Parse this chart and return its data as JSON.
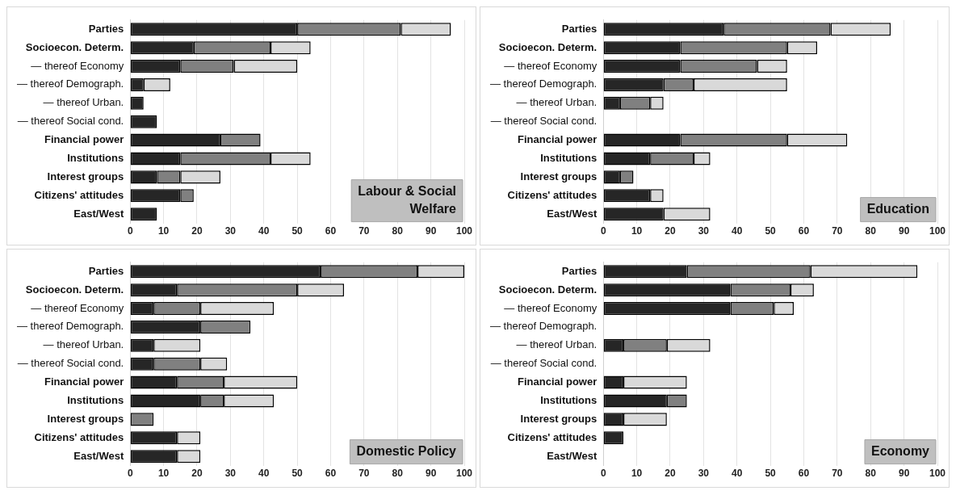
{
  "chart_data": [
    {
      "type": "bar",
      "orientation": "horizontal",
      "stacked": true,
      "title": "Labour & Social Welfare",
      "categories": [
        "Parties",
        "Socioecon. Determ.",
        "— thereof Economy",
        "— thereof Demograph.",
        "— thereof Urban.",
        "— thereof Social cond.",
        "Financial power",
        "Institutions",
        "Interest groups",
        "Citizens' attitudes",
        "East/West"
      ],
      "series": [
        {
          "color": "#262626",
          "values": [
            50,
            19,
            15,
            4,
            4,
            8,
            27,
            15,
            8,
            15,
            8
          ]
        },
        {
          "color": "#808080",
          "values": [
            31,
            23,
            16,
            null,
            null,
            null,
            12,
            27,
            7,
            4,
            null
          ]
        },
        {
          "color": "#d9d9d9",
          "values": [
            15,
            12,
            19,
            8,
            null,
            null,
            null,
            12,
            12,
            null,
            null
          ]
        }
      ],
      "xlim": [
        0,
        100
      ],
      "xticks": [
        0,
        10,
        20,
        30,
        40,
        50,
        60,
        70,
        80,
        90,
        100
      ],
      "grid": "x",
      "legend": false
    },
    {
      "type": "bar",
      "orientation": "horizontal",
      "stacked": true,
      "title": "Education",
      "categories": [
        "Parties",
        "Socioecon. Determ.",
        "— thereof Economy",
        "— thereof Demograph.",
        "— thereof Urban.",
        "— thereof Social cond.",
        "Financial power",
        "Institutions",
        "Interest groups",
        "Citizens' attitudes",
        "East/West"
      ],
      "series": [
        {
          "color": "#262626",
          "values": [
            36,
            23,
            23,
            18,
            5,
            null,
            23,
            14,
            5,
            14,
            18
          ]
        },
        {
          "color": "#808080",
          "values": [
            32,
            32,
            23,
            9,
            9,
            null,
            32,
            13,
            4,
            null,
            null
          ]
        },
        {
          "color": "#d9d9d9",
          "values": [
            18,
            9,
            9,
            28,
            4,
            null,
            18,
            5,
            null,
            4,
            14
          ]
        }
      ],
      "xlim": [
        0,
        100
      ],
      "xticks": [
        0,
        10,
        20,
        30,
        40,
        50,
        60,
        70,
        80,
        90,
        100
      ],
      "grid": "x",
      "legend": false
    },
    {
      "type": "bar",
      "orientation": "horizontal",
      "stacked": true,
      "title": "Domestic Policy",
      "categories": [
        "Parties",
        "Socioecon. Determ.",
        "— thereof Economy",
        "— thereof Demograph.",
        "— thereof Urban.",
        "— thereof Social cond.",
        "Financial power",
        "Institutions",
        "Interest groups",
        "Citizens' attitudes",
        "East/West"
      ],
      "series": [
        {
          "color": "#262626",
          "values": [
            57,
            14,
            7,
            21,
            7,
            7,
            14,
            21,
            null,
            14,
            14
          ]
        },
        {
          "color": "#808080",
          "values": [
            29,
            36,
            14,
            15,
            null,
            14,
            14,
            7,
            7,
            null,
            null
          ]
        },
        {
          "color": "#d9d9d9",
          "values": [
            14,
            14,
            22,
            null,
            14,
            8,
            22,
            15,
            null,
            7,
            7
          ]
        }
      ],
      "xlim": [
        0,
        100
      ],
      "xticks": [
        0,
        10,
        20,
        30,
        40,
        50,
        60,
        70,
        80,
        90,
        100
      ],
      "grid": "x",
      "legend": false
    },
    {
      "type": "bar",
      "orientation": "horizontal",
      "stacked": true,
      "title": "Economy",
      "categories": [
        "Parties",
        "Socioecon. Determ.",
        "— thereof Economy",
        "— thereof Demograph.",
        "— thereof Urban.",
        "— thereof Social cond.",
        "Financial power",
        "Institutions",
        "Interest groups",
        "Citizens' attitudes",
        "East/West"
      ],
      "series": [
        {
          "color": "#262626",
          "values": [
            25,
            38,
            38,
            null,
            6,
            null,
            6,
            19,
            6,
            6,
            null
          ]
        },
        {
          "color": "#808080",
          "values": [
            37,
            18,
            13,
            null,
            13,
            null,
            null,
            6,
            null,
            null,
            null
          ]
        },
        {
          "color": "#d9d9d9",
          "values": [
            32,
            7,
            6,
            null,
            13,
            null,
            19,
            null,
            13,
            null,
            null
          ]
        }
      ],
      "xlim": [
        0,
        100
      ],
      "xticks": [
        0,
        10,
        20,
        30,
        40,
        50,
        60,
        70,
        80,
        90,
        100
      ],
      "grid": "x",
      "legend": false
    }
  ]
}
